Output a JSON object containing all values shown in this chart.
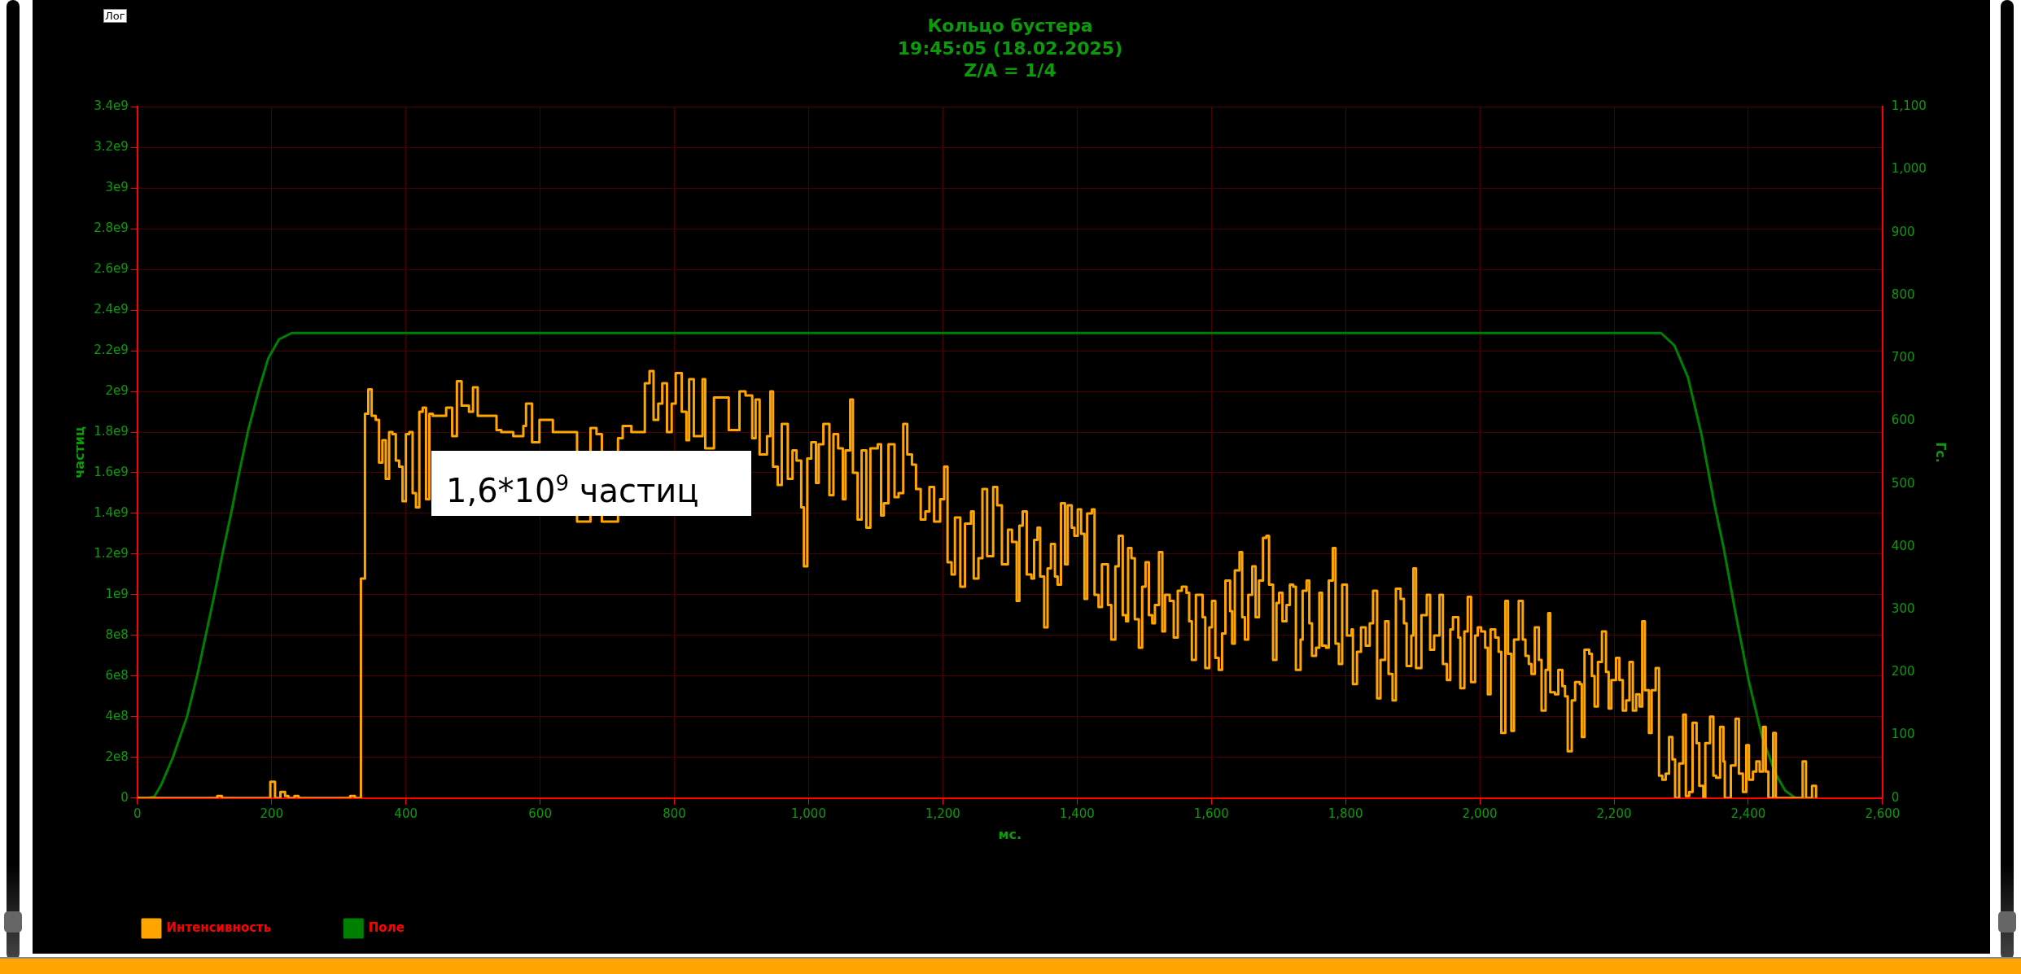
{
  "chart_data": {
    "type": "line",
    "title": "Кольцо бустера",
    "subtitle": "19:45:05 (18.02.2025)\nZ/A = 1/4",
    "xlabel": "мс.",
    "ylabel": "частиц",
    "y2label": "Гс.",
    "annotations": [
      "1,6*10$^{9}$ частиц",
      "Лог"
    ],
    "xlim": [
      0,
      2600
    ],
    "xticks": [
      0,
      200,
      400,
      600,
      800,
      {
        "value": 1000,
        "label": "1,000"
      },
      {
        "value": 1200,
        "label": "1,200"
      },
      {
        "value": 1400,
        "label": "1,400"
      },
      {
        "value": 1600,
        "label": "1,600"
      },
      {
        "value": 1800,
        "label": "1,800"
      },
      {
        "value": 2000,
        "label": "2,000"
      },
      {
        "value": 2200,
        "label": "2,200"
      },
      {
        "value": 2400,
        "label": "2,400"
      },
      {
        "value": 2600,
        "label": "2,600"
      }
    ],
    "ylim": [
      0,
      3400000000.0
    ],
    "yticks": [
      0,
      {
        "value": 200000000.0,
        "label": "2e8"
      },
      {
        "value": 400000000.0,
        "label": "4e8"
      },
      {
        "value": 600000000.0,
        "label": "6e8"
      },
      {
        "value": 800000000.0,
        "label": "8e8"
      },
      {
        "value": 1000000000.0,
        "label": "1e9"
      },
      {
        "value": 1200000000.0,
        "label": "1.2e9"
      },
      {
        "value": 1400000000.0,
        "label": "1.4e9"
      },
      {
        "value": 1600000000.0,
        "label": "1.6e9"
      },
      {
        "value": 1800000000.0,
        "label": "1.8e9"
      },
      {
        "value": 2000000000.0,
        "label": "2e9"
      },
      {
        "value": 2200000000.0,
        "label": "2.2e9"
      },
      {
        "value": 2400000000.0,
        "label": "2.4e9"
      },
      {
        "value": 2600000000.0,
        "label": "2.6e9"
      },
      {
        "value": 2800000000.0,
        "label": "2.8e9"
      },
      {
        "value": 3000000000.0,
        "label": "3e9"
      },
      {
        "value": 3200000000.0,
        "label": "3.2e9"
      },
      {
        "value": 3400000000.0,
        "label": "3.4e9"
      }
    ],
    "y2lim": [
      0,
      1100
    ],
    "y2ticks": [
      0,
      100,
      200,
      300,
      400,
      500,
      600,
      700,
      800,
      900,
      {
        "value": 1000,
        "label": "1,000"
      },
      {
        "value": 1100,
        "label": "1,100"
      }
    ],
    "grid": true,
    "legend": "bottom left",
    "marker": "none",
    "line_style": "solid",
    "series": [
      {
        "name": "Интенсивность",
        "type": "step",
        "color": "#ffa500",
        "x": [
          0,
          119,
          126,
          198,
          205,
          213,
          220,
          225,
          234,
          240,
          317,
          324,
          333,
          339,
          344,
          349,
          355,
          360,
          365,
          370,
          375,
          380,
          385,
          390,
          395,
          400,
          405,
          410,
          415,
          420,
          425,
          430,
          435,
          440,
          445,
          448,
          455,
          460,
          469,
          476,
          483,
          494,
          500,
          507,
          516,
          525,
          535,
          542,
          551,
          560,
          568,
          575,
          579,
          588,
          599,
          608,
          619,
          630,
          640,
          655,
          662,
          675,
          684,
          692,
          712,
          716,
          723,
          736,
          745,
          756,
          763,
          769,
          776,
          782,
          789,
          796,
          802,
          811,
          818,
          822,
          829,
          842,
          846,
          859,
          868,
          881,
          890,
          897,
          906,
          916,
          921,
          927,
          938,
          943,
          947,
          954,
          960,
          969,
          976,
          982,
          989,
          993,
          998,
          1004,
          1011,
          1015,
          1022,
          1031,
          1037,
          1044,
          1051,
          1055,
          1062,
          1066,
          1073,
          1079,
          1086,
          1092,
          1103,
          1108,
          1112,
          1119,
          1128,
          1134,
          1141,
          1147,
          1154,
          1160,
          1167,
          1174,
          1180,
          1187,
          1196,
          1202,
          1207,
          1213,
          1218,
          1226,
          1233,
          1242,
          1246,
          1253,
          1259,
          1266,
          1275,
          1281,
          1288,
          1297,
          1303,
          1310,
          1314,
          1319,
          1325,
          1332,
          1336,
          1341,
          1345,
          1351,
          1356,
          1361,
          1367,
          1371,
          1376,
          1382,
          1386,
          1392,
          1396,
          1401,
          1406,
          1411,
          1415,
          1422,
          1426,
          1432,
          1437,
          1442,
          1446,
          1451,
          1457,
          1462,
          1468,
          1473,
          1476,
          1481,
          1486,
          1492,
          1497,
          1502,
          1507,
          1512,
          1516,
          1522,
          1527,
          1531,
          1538,
          1544,
          1550,
          1556,
          1563,
          1567,
          1571,
          1577,
          1583,
          1587,
          1591,
          1597,
          1601,
          1606,
          1611,
          1616,
          1621,
          1628,
          1631,
          1635,
          1642,
          1646,
          1650,
          1655,
          1661,
          1666,
          1671,
          1677,
          1682,
          1686,
          1692,
          1697,
          1701,
          1706,
          1712,
          1717,
          1722,
          1726,
          1733,
          1736,
          1742,
          1746,
          1750,
          1756,
          1761,
          1765,
          1771,
          1775,
          1781,
          1785,
          1790,
          1795,
          1802,
          1809,
          1811,
          1817,
          1823,
          1830,
          1836,
          1841,
          1847,
          1852,
          1859,
          1864,
          1870,
          1875,
          1882,
          1887,
          1891,
          1898,
          1901,
          1905,
          1913,
          1921,
          1926,
          1932,
          1940,
          1945,
          1951,
          1956,
          1960,
          1968,
          1971,
          1977,
          1982,
          1987,
          1993,
          1997,
          2002,
          2008,
          2012,
          2016,
          2023,
          2028,
          2032,
          2038,
          2042,
          2047,
          2051,
          2058,
          2064,
          2068,
          2073,
          2077,
          2082,
          2088,
          2092,
          2098,
          2102,
          2105,
          2112,
          2117,
          2123,
          2127,
          2131,
          2137,
          2142,
          2149,
          2152,
          2156,
          2163,
          2167,
          2171,
          2176,
          2182,
          2188,
          2192,
          2196,
          2203,
          2208,
          2213,
          2218,
          2223,
          2228,
          2233,
          2238,
          2242,
          2246,
          2252,
          2256,
          2262,
          2267,
          2272,
          2277,
          2282,
          2287,
          2291,
          2297,
          2303,
          2307,
          2312,
          2317,
          2323,
          2327,
          2333,
          2336,
          2343,
          2348,
          2352,
          2358,
          2363,
          2365,
          2374,
          2381,
          2386,
          2392,
          2397,
          2401,
          2407,
          2412,
          2417,
          2422,
          2426,
          2430,
          2437,
          2441,
          2481,
          2486,
          2495,
          2501
        ],
        "values": [
          0,
          10000000.0,
          0,
          80000000.0,
          0,
          30000000.0,
          10000000.0,
          0,
          10000000.0,
          0,
          10000000.0,
          0,
          1080000000.0,
          1890000000.0,
          2010000000.0,
          1880000000.0,
          1860000000.0,
          1650000000.0,
          1760000000.0,
          1570000000.0,
          1800000000.0,
          1790000000.0,
          1660000000.0,
          1630000000.0,
          1460000000.0,
          1790000000.0,
          1800000000.0,
          1500000000.0,
          1430000000.0,
          1900000000.0,
          1920000000.0,
          1470000000.0,
          1890000000.0,
          1880000000.0,
          null,
          null,
          null,
          1920000000.0,
          1780000000.0,
          2050000000.0,
          1930000000.0,
          1900000000.0,
          2020000000.0,
          1880000000.0,
          null,
          null,
          1810000000.0,
          1800000000.0,
          null,
          1780000000.0,
          null,
          1830000000.0,
          1940000000.0,
          1750000000.0,
          1860000000.0,
          null,
          1800000000.0,
          null,
          null,
          1360000000.0,
          null,
          1820000000.0,
          1790000000.0,
          1360000000.0,
          1360000000.0,
          1770000000.0,
          1830000000.0,
          1800000000.0,
          1800000000.0,
          2040000000.0,
          2100000000.0,
          1860000000.0,
          1940000000.0,
          2040000000.0,
          1800000000.0,
          1940000000.0,
          2090000000.0,
          1900000000.0,
          1760000000.0,
          2060000000.0,
          1780000000.0,
          2060000000.0,
          1720000000.0,
          1970000000.0,
          null,
          1810000000.0,
          null,
          2000000000.0,
          1980000000.0,
          1770000000.0,
          1960000000.0,
          1690000000.0,
          1780000000.0,
          2000000000.0,
          1630000000.0,
          1540000000.0,
          1840000000.0,
          1570000000.0,
          1710000000.0,
          1660000000.0,
          1430000000.0,
          1140000000.0,
          1670000000.0,
          1750000000.0,
          1550000000.0,
          1740000000.0,
          1840000000.0,
          1490000000.0,
          1790000000.0,
          1720000000.0,
          1470000000.0,
          1710000000.0,
          1960000000.0,
          1600000000.0,
          1370000000.0,
          1710000000.0,
          1330000000.0,
          1720000000.0,
          1740000000.0,
          1390000000.0,
          1450000000.0,
          1740000000.0,
          1480000000.0,
          1500000000.0,
          1840000000.0,
          1690000000.0,
          1640000000.0,
          1520000000.0,
          1370000000.0,
          1410000000.0,
          1530000000.0,
          1360000000.0,
          1470000000.0,
          1630000000.0,
          1160000000.0,
          1100000000.0,
          1380000000.0,
          1040000000.0,
          1350000000.0,
          1410000000.0,
          1080000000.0,
          1180000000.0,
          1520000000.0,
          1190000000.0,
          1530000000.0,
          1440000000.0,
          1150000000.0,
          1320000000.0,
          1260000000.0,
          970000000.0,
          1340000000.0,
          1410000000.0,
          1100000000.0,
          1080000000.0,
          1270000000.0,
          1330000000.0,
          1090000000.0,
          840000000.0,
          1130000000.0,
          1250000000.0,
          1090000000.0,
          1050000000.0,
          1450000000.0,
          1150000000.0,
          1440000000.0,
          1330000000.0,
          1290000000.0,
          1420000000.0,
          1300000000.0,
          980000000.0,
          1400000000.0,
          1420000000.0,
          1000000000.0,
          940000000.0,
          1150000000.0,
          1150000000.0,
          950000000.0,
          780000000.0,
          1140000000.0,
          1290000000.0,
          900000000.0,
          870000000.0,
          1230000000.0,
          1180000000.0,
          880000000.0,
          740000000.0,
          1040000000.0,
          1160000000.0,
          900000000.0,
          860000000.0,
          950000000.0,
          1210000000.0,
          820000000.0,
          1000000000.0,
          970000000.0,
          790000000.0,
          1020000000.0,
          1040000000.0,
          1010000000.0,
          870000000.0,
          680000000.0,
          1000000000.0,
          1000000000.0,
          890000000.0,
          640000000.0,
          840000000.0,
          970000000.0,
          690000000.0,
          630000000.0,
          810000000.0,
          1070000000.0,
          920000000.0,
          760000000.0,
          1120000000.0,
          1210000000.0,
          890000000.0,
          780000000.0,
          1000000000.0,
          1140000000.0,
          890000000.0,
          1070000000.0,
          1280000000.0,
          1290000000.0,
          1050000000.0,
          680000000.0,
          960000000.0,
          1010000000.0,
          870000000.0,
          950000000.0,
          1050000000.0,
          1040000000.0,
          630000000.0,
          780000000.0,
          1020000000.0,
          1070000000.0,
          860000000.0,
          700000000.0,
          740000000.0,
          1010000000.0,
          750000000.0,
          740000000.0,
          1070000000.0,
          1230000000.0,
          760000000.0,
          660000000.0,
          1050000000.0,
          800000000.0,
          830000000.0,
          560000000.0,
          720000000.0,
          840000000.0,
          750000000.0,
          860000000.0,
          1020000000.0,
          490000000.0,
          680000000.0,
          870000000.0,
          610000000.0,
          480000000.0,
          1030000000.0,
          980000000.0,
          860000000.0,
          650000000.0,
          800000000.0,
          1130000000.0,
          640000000.0,
          900000000.0,
          1000000000.0,
          730000000.0,
          800000000.0,
          1000000000.0,
          660000000.0,
          580000000.0,
          830000000.0,
          890000000.0,
          790000000.0,
          540000000.0,
          820000000.0,
          990000000.0,
          570000000.0,
          800000000.0,
          840000000.0,
          820000000.0,
          740000000.0,
          510000000.0,
          830000000.0,
          790000000.0,
          720000000.0,
          320000000.0,
          970000000.0,
          710000000.0,
          330000000.0,
          780000000.0,
          970000000.0,
          780000000.0,
          700000000.0,
          660000000.0,
          610000000.0,
          840000000.0,
          680000000.0,
          430000000.0,
          630000000.0,
          910000000.0,
          520000000.0,
          510000000.0,
          630000000.0,
          550000000.0,
          500000000.0,
          230000000.0,
          480000000.0,
          570000000.0,
          560000000.0,
          300000000.0,
          730000000.0,
          710000000.0,
          600000000.0,
          450000000.0,
          670000000.0,
          820000000.0,
          620000000.0,
          440000000.0,
          580000000.0,
          690000000.0,
          580000000.0,
          430000000.0,
          480000000.0,
          670000000.0,
          430000000.0,
          510000000.0,
          450000000.0,
          870000000.0,
          530000000.0,
          320000000.0,
          530000000.0,
          640000000.0,
          110000000.0,
          90000000.0,
          120000000.0,
          300000000.0,
          190000000.0,
          0,
          170000000.0,
          410000000.0,
          10000000.0,
          30000000.0,
          370000000.0,
          270000000.0,
          60000000.0,
          0,
          270000000.0,
          400000000.0,
          110000000.0,
          100000000.0,
          350000000.0,
          180000000.0,
          0,
          160000000.0,
          390000000.0,
          120000000.0,
          30000000.0,
          260000000.0,
          90000000.0,
          130000000.0,
          180000000.0,
          130000000.0,
          350000000.0,
          130000000.0,
          0,
          320000000.0,
          0,
          180000000.0,
          0,
          60000000.0,
          0
        ]
      },
      {
        "name": "Поле",
        "type": "line",
        "axis": "y2",
        "color": "#008000",
        "x": [
          0,
          15,
          25,
          35,
          53,
          74,
          89,
          102,
          115,
          127,
          140,
          152,
          165,
          181,
          195,
          211,
          230,
          2270,
          2290,
          2310,
          2330,
          2350,
          2363,
          2380,
          2400,
          2420,
          2440,
          2455,
          2470,
          2500
        ],
        "values": [
          0,
          0,
          2,
          20,
          65,
          130,
          195,
          260,
          325,
          390,
          455,
          520,
          585,
          650,
          700,
          730,
          740,
          740,
          720,
          670,
          580,
          465,
          400,
          300,
          190,
          100,
          40,
          12,
          0,
          0
        ]
      }
    ]
  }
}
